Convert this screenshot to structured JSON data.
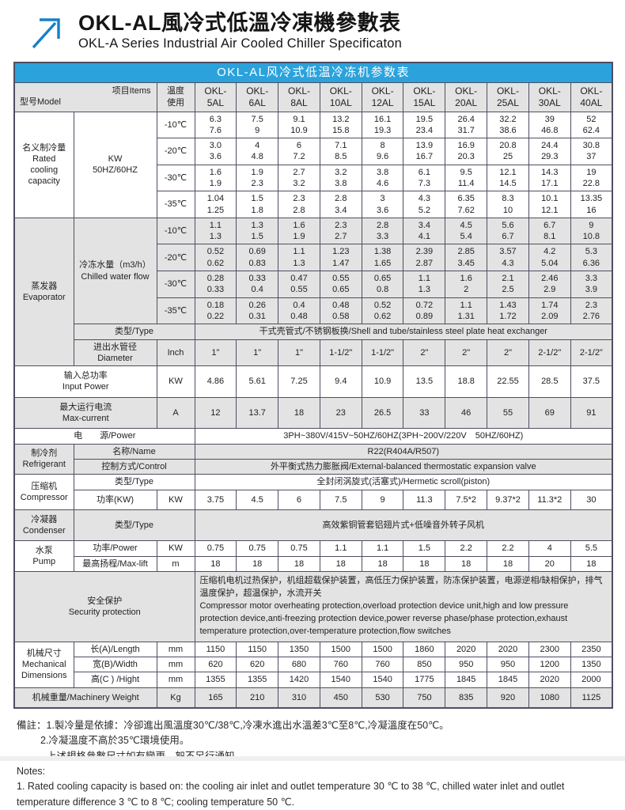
{
  "header": {
    "title_zh": "OKL-AL風冷式低溫冷凍機參數表",
    "title_en": "OKL-A Series Industrial Air Cooled Chiller Specificaton"
  },
  "colors": {
    "accent_blue": "#2BA2DC",
    "arrow_blue": "#1580C6",
    "shade_gray": "#e3e3e3",
    "border": "#4e4e63"
  },
  "table": {
    "caption": "OKL-AL风冷式低温冷冻机参数表",
    "rows": [
      {
        "name": "header-row",
        "shade": true,
        "lead": [
          {
            "t": "型号Model",
            "diag": "项目Items",
            "c": 2,
            "n": "model-items-diagonal-header"
          },
          {
            "t": "温度\n使用",
            "cls": "hdr",
            "n": "temperature-usage-header"
          }
        ],
        "vcls": "mhdr",
        "values": [
          "OKL-\n5AL",
          "OKL-\n6AL",
          "OKL-\n8AL",
          "OKL-\n10AL",
          "OKL-\n12AL",
          "OKL-\n15AL",
          "OKL-\n20AL",
          "OKL-\n25AL",
          "OKL-\n30AL",
          "OKL-\n40AL"
        ]
      },
      {
        "name": "cooling-neg10",
        "lead": [
          {
            "t": "名义制冷量\nRated\ncooling\ncapacity",
            "r": 4,
            "cls": "grp",
            "n": "group-rated-cooling-capacity"
          },
          {
            "t": "KW\n50HZ/60HZ",
            "r": 4,
            "cls": "lbl",
            "n": "label-kw-50hz-60hz"
          },
          {
            "t": "-10℃",
            "cls": "tmp",
            "n": "temp-minus-10"
          }
        ],
        "values": [
          "6.3\n7.6",
          "7.5\n9",
          "9.1\n10.9",
          "13.2\n15.8",
          "16.1\n19.3",
          "19.5\n23.4",
          "26.4\n31.7",
          "32.2\n38.6",
          "39\n46.8",
          "52\n62.4"
        ]
      },
      {
        "name": "cooling-neg20",
        "lead": [
          {
            "t": "-20℃",
            "cls": "tmp",
            "n": "temp-minus-20"
          }
        ],
        "values": [
          "3.0\n3.6",
          "4\n4.8",
          "6\n7.2",
          "7.1\n8.5",
          "8\n9.6",
          "13.9\n16.7",
          "16.9\n20.3",
          "20.8\n25",
          "24.4\n29.3",
          "30.8\n37"
        ]
      },
      {
        "name": "cooling-neg30",
        "lead": [
          {
            "t": "-30℃",
            "cls": "tmp",
            "n": "temp-minus-30"
          }
        ],
        "values": [
          "1.6\n1.9",
          "1.9\n2.3",
          "2.7\n3.2",
          "3.2\n3.8",
          "3.8\n4.6",
          "6.1\n7.3",
          "9.5\n11.4",
          "12.1\n14.5",
          "14.3\n17.1",
          "19\n22.8"
        ]
      },
      {
        "name": "cooling-neg35",
        "lead": [
          {
            "t": "-35℃",
            "cls": "tmp",
            "n": "temp-minus-35"
          }
        ],
        "values": [
          "1.04\n1.25",
          "1.5\n1.8",
          "2.3\n2.8",
          "2.8\n3.4",
          "3\n3.6",
          "4.3\n5.2",
          "6.35\n7.62",
          "8.3\n10",
          "10.1\n12.1",
          "13.35\n16"
        ]
      },
      {
        "name": "evap-flow-neg10",
        "shade": true,
        "lead": [
          {
            "t": "蒸发器\nEvaporator",
            "r": 6,
            "cls": "grp",
            "n": "group-evaporator"
          },
          {
            "t": "冷冻水量（m3/h）\nChilled water flow",
            "r": 4,
            "cls": "lbl",
            "n": "label-chilled-water-flow"
          },
          {
            "t": "-10℃",
            "cls": "tmp",
            "n": "temp-minus-10"
          }
        ],
        "values": [
          "1.1\n1.3",
          "1.3\n1.5",
          "1.6\n1.9",
          "2.3\n2.7",
          "2.8\n3.3",
          "3.4\n4.1",
          "4.5\n5.4",
          "5.6\n6.7",
          "6.7\n8.1",
          "9\n10.8"
        ]
      },
      {
        "name": "evap-flow-neg20",
        "shade": true,
        "lead": [
          {
            "t": "-20℃",
            "cls": "tmp",
            "n": "temp-minus-20"
          }
        ],
        "values": [
          "0.52\n0.62",
          "0.69\n0.83",
          "1.1\n1.3",
          "1.23\n1.47",
          "1.38\n1.65",
          "2.39\n2.87",
          "2.85\n3.45",
          "3.57\n4.3",
          "4.2\n5.04",
          "5.3\n6.36"
        ]
      },
      {
        "name": "evap-flow-neg30",
        "shade": true,
        "lead": [
          {
            "t": "-30℃",
            "cls": "tmp",
            "n": "temp-minus-30"
          }
        ],
        "values": [
          "0.28\n0.33",
          "0.33\n0.4",
          "0.47\n0.55",
          "0.55\n0.65",
          "0.65\n0.8",
          "1.1\n1.3",
          "1.6\n2",
          "2.1\n2.5",
          "2.46\n2.9",
          "3.3\n3.9"
        ]
      },
      {
        "name": "evap-flow-neg35",
        "shade": true,
        "lead": [
          {
            "t": "-35℃",
            "cls": "tmp",
            "n": "temp-minus-35"
          }
        ],
        "values": [
          "0.18\n0.22",
          "0.26\n0.31",
          "0.4\n0.48",
          "0.48\n0.58",
          "0.52\n0.62",
          "0.72\n0.89",
          "1.1\n1.31",
          "1.43\n1.72",
          "1.74\n2.09",
          "2.3\n2.76"
        ]
      },
      {
        "name": "evap-type",
        "shade": true,
        "lead": [
          {
            "t": "类型/Type",
            "c": 2,
            "cls": "lbl",
            "n": "label-type"
          }
        ],
        "span": "干式壳管式/不锈钢板换/Shell and tube/stainless steel plate heat exchanger"
      },
      {
        "name": "evap-pipe-diameter",
        "shade": true,
        "lead": [
          {
            "t": "进出水管径\nDiameter",
            "cls": "lbl",
            "n": "label-pipe-diameter"
          },
          {
            "t": "Inch",
            "cls": "unit",
            "n": "unit-inch"
          }
        ],
        "values": [
          "1\"",
          "1\"",
          "1\"",
          "1-1/2\"",
          "1-1/2\"",
          "2\"",
          "2\"",
          "2\"",
          "2-1/2\"",
          "2-1/2\""
        ]
      },
      {
        "name": "input-power",
        "cls": "h-md",
        "lead": [
          {
            "t": "输入总功率\nInput Power",
            "c": 2,
            "cls": "lbl",
            "n": "label-input-power"
          },
          {
            "t": "KW",
            "cls": "unit",
            "n": "unit-kw"
          }
        ],
        "values": [
          "4.86",
          "5.61",
          "7.25",
          "9.4",
          "10.9",
          "13.5",
          "18.8",
          "22.55",
          "28.5",
          "37.5"
        ]
      },
      {
        "name": "max-current",
        "shade": true,
        "cls": "h-md",
        "lead": [
          {
            "t": "最大运行电流\nMax-current",
            "c": 2,
            "cls": "lbl",
            "n": "label-max-current"
          },
          {
            "t": "A",
            "cls": "unit",
            "n": "unit-a"
          }
        ],
        "values": [
          "12",
          "13.7",
          "18",
          "23",
          "26.5",
          "33",
          "46",
          "55",
          "69",
          "91"
        ]
      },
      {
        "name": "power-supply",
        "lead": [
          {
            "t": "电　　源/Power",
            "c": 3,
            "cls": "lbl",
            "n": "label-power-supply"
          }
        ],
        "span": "3PH~380V/415V~50HZ/60HZ(3PH~200V/220V　50HZ/60HZ)"
      },
      {
        "name": "refrigerant-name",
        "shade": true,
        "lead": [
          {
            "t": "制冷剂\nRefrigerant",
            "r": 2,
            "cls": "grp",
            "n": "group-refrigerant"
          },
          {
            "t": "名称/Name",
            "c": 2,
            "cls": "lbl",
            "n": "label-name"
          }
        ],
        "span": "R22(R404A/R507)"
      },
      {
        "name": "refrigerant-control",
        "shade": true,
        "lead": [
          {
            "t": "控制方式/Control",
            "c": 2,
            "cls": "lbl",
            "n": "label-control"
          }
        ],
        "span": "外平衡式热力膨胀阀/External-balanced thermostatic expansion valve"
      },
      {
        "name": "compressor-type",
        "lead": [
          {
            "t": "压缩机\nCompressor",
            "r": 2,
            "cls": "grp",
            "n": "group-compressor"
          },
          {
            "t": "类型/Type",
            "c": 2,
            "cls": "lbl",
            "n": "label-type"
          }
        ],
        "span": "全封闭涡旋式(活塞式)/Hermetic scroll(piston)"
      },
      {
        "name": "compressor-power",
        "cls": "h-md",
        "lead": [
          {
            "t": "功率(KW)",
            "cls": "lbl",
            "n": "label-compressor-power"
          },
          {
            "t": "KW",
            "cls": "unit",
            "n": "unit-kw"
          }
        ],
        "values": [
          "3.75",
          "4.5",
          "6",
          "7.5",
          "9",
          "11.3",
          "7.5*2",
          "9.37*2",
          "11.3*2",
          "30"
        ]
      },
      {
        "name": "condenser-type",
        "shade": true,
        "cls": "h-md",
        "lead": [
          {
            "t": "冷凝器\nCondenser",
            "cls": "grp",
            "n": "group-condenser"
          },
          {
            "t": "类型/Type",
            "c": 2,
            "cls": "lbl",
            "n": "label-type"
          }
        ],
        "span": "高效紫铜管套铝翅片式+低噪音外转子风机"
      },
      {
        "name": "pump-power",
        "lead": [
          {
            "t": "水泵\nPump",
            "r": 2,
            "cls": "grp",
            "n": "group-pump"
          },
          {
            "t": "功率/Power",
            "cls": "lbl",
            "n": "label-pump-power"
          },
          {
            "t": "KW",
            "cls": "unit",
            "n": "unit-kw"
          }
        ],
        "values": [
          "0.75",
          "0.75",
          "0.75",
          "1.1",
          "1.1",
          "1.5",
          "2.2",
          "2.2",
          "4",
          "5.5"
        ]
      },
      {
        "name": "pump-max-lift",
        "lead": [
          {
            "t": "最高扬程/Max-lift",
            "cls": "lbl",
            "n": "label-max-lift"
          },
          {
            "t": "m",
            "cls": "unit",
            "n": "unit-m"
          }
        ],
        "values": [
          "18",
          "18",
          "18",
          "18",
          "18",
          "18",
          "18",
          "18",
          "20",
          "18"
        ]
      },
      {
        "name": "security-protection",
        "shade": true,
        "lead": [
          {
            "t": "安全保护\nSecurity protection",
            "c": 3,
            "cls": "lbl",
            "n": "label-security-protection"
          }
        ],
        "spanCls": "left",
        "span": "压缩机电机过热保护，机组超载保护装置，高低压力保护装置，防冻保护装置，电源逆相/缺相保护，排气温度保护，超温保护，水流开关\n Compressor motor overheating protection,overload protection device unit,high and low pressure protection device,anti-freezing protection device,power reverse phase/phase protection,exhaust temperature protection,over-temperature protection,flow switches"
      },
      {
        "name": "mech-length",
        "lead": [
          {
            "t": "机械尺寸\nMechanical\nDimensions",
            "r": 3,
            "cls": "grp",
            "n": "group-mechanical-dimensions"
          },
          {
            "t": "长(A)/Length",
            "cls": "lbl",
            "n": "label-length"
          },
          {
            "t": "mm",
            "cls": "unit",
            "n": "unit-mm"
          }
        ],
        "values": [
          "1150",
          "1150",
          "1350",
          "1500",
          "1500",
          "1860",
          "2020",
          "2020",
          "2300",
          "2350"
        ]
      },
      {
        "name": "mech-width",
        "lead": [
          {
            "t": "宽(B)/Width",
            "cls": "lbl",
            "n": "label-width"
          },
          {
            "t": "mm",
            "cls": "unit",
            "n": "unit-mm"
          }
        ],
        "values": [
          "620",
          "620",
          "680",
          "760",
          "760",
          "850",
          "950",
          "950",
          "1200",
          "1350"
        ]
      },
      {
        "name": "mech-height",
        "lead": [
          {
            "t": "高(C ) /Hight",
            "cls": "lbl",
            "n": "label-height"
          },
          {
            "t": "mm",
            "cls": "unit",
            "n": "unit-mm"
          }
        ],
        "values": [
          "1355",
          "1355",
          "1420",
          "1540",
          "1540",
          "1775",
          "1845",
          "1845",
          "2020",
          "2000"
        ]
      },
      {
        "name": "machinery-weight",
        "shade": true,
        "cls": "h-md",
        "lead": [
          {
            "t": "机械重量/Machinery Weight",
            "c": 2,
            "cls": "lbl",
            "n": "label-machinery-weight"
          },
          {
            "t": "Kg",
            "cls": "unit",
            "n": "unit-kg"
          }
        ],
        "values": [
          "165",
          "210",
          "310",
          "450",
          "530",
          "750",
          "835",
          "920",
          "1080",
          "1125"
        ]
      }
    ]
  },
  "notes": {
    "lines": [
      {
        "t": "備註：1.製冷量是依據：冷卻進出風溫度30℃/38℃,冷凍水進出水溫差3℃至8℃,冷凝溫度在50℃。",
        "cls": ""
      },
      {
        "t": "2.冷凝溫度不高於35℃環境使用。",
        "cls": "ind"
      },
      {
        "t": "上述規格參數尺寸如有變更，恕不另行通知。",
        "cls": "ind2"
      },
      {
        "t": "Notes:",
        "cls": ""
      },
      {
        "t": "1. Rated cooling capacity is based on: the cooling air inlet and outlet temperature 30 ℃ to 38 ℃, chilled water inlet and outlet temperature difference 3 ℃ to 8 ℃; cooling temperature 50 ℃.",
        "cls": ""
      }
    ]
  }
}
